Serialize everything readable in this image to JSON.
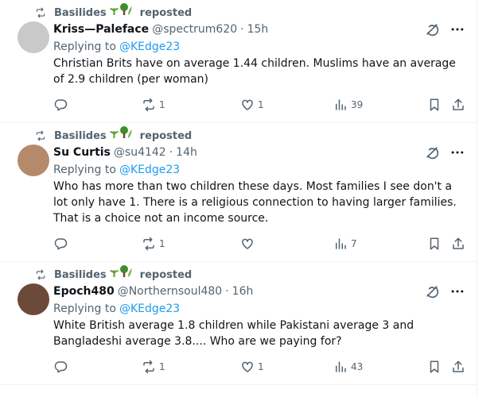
{
  "tweets": [
    {
      "reposted_by": "Basilides",
      "repost_label": "reposted",
      "author": {
        "name": "Kriss—Paleface",
        "handle": "@spectrum620",
        "separator": "·",
        "time": "15h"
      },
      "replying_prefix": "Replying to",
      "replying_to": "@KEdge23",
      "text": "Christian Brits have on average 1.44 children. Muslims have an average of 2.9 children (per woman)",
      "stats": {
        "reposts": 1,
        "likes": 1,
        "views": 39
      }
    },
    {
      "reposted_by": "Basilides",
      "repost_label": "reposted",
      "author": {
        "name": "Su Curtis",
        "handle": "@su4142",
        "separator": "·",
        "time": "14h"
      },
      "replying_prefix": "Replying to",
      "replying_to": "@KEdge23",
      "text": "Who has more than two children these days. Most families I see don't  a lot only have 1. There is a religious connection to having larger families. That is a choice not an income source.",
      "stats": {
        "reposts": 1,
        "views": 7
      }
    },
    {
      "reposted_by": "Basilides",
      "repost_label": "reposted",
      "author": {
        "name": "Epoch480",
        "handle": "@Northernsoul480",
        "separator": "·",
        "time": "16h"
      },
      "replying_prefix": "Replying to",
      "replying_to": "@KEdge23",
      "text": "White British average 1.8 children while Pakistani average 3 and Bangladeshi average 3.8.... Who are we paying for?",
      "stats": {
        "reposts": 1,
        "likes": 1,
        "views": 43
      }
    }
  ]
}
